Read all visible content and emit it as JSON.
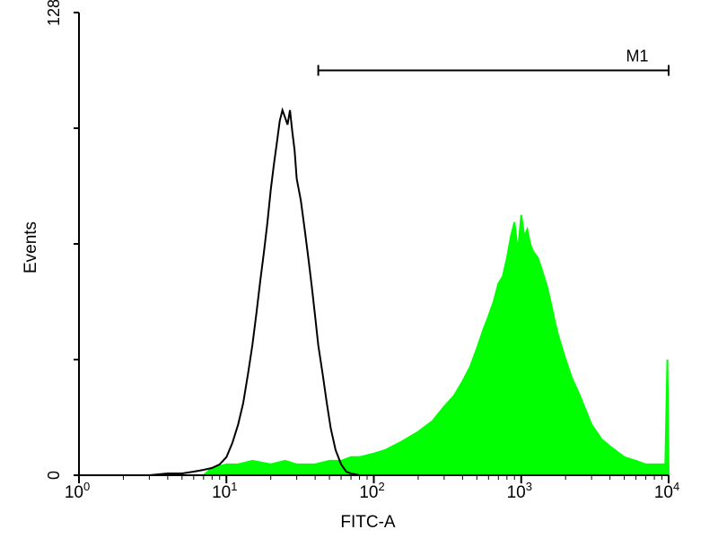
{
  "chart_data": {
    "type": "area",
    "title": "",
    "xlabel": "FITC-A",
    "ylabel": "Events",
    "xscale": "log",
    "xlim": [
      1,
      10000
    ],
    "ylim": [
      0,
      128
    ],
    "x_ticks": [
      {
        "base": "10",
        "exp": "0",
        "value": 1
      },
      {
        "base": "10",
        "exp": "1",
        "value": 10
      },
      {
        "base": "10",
        "exp": "2",
        "value": 100
      },
      {
        "base": "10",
        "exp": "3",
        "value": 1000
      },
      {
        "base": "10",
        "exp": "4",
        "value": 10000
      }
    ],
    "y_ticks": [
      {
        "label": "0",
        "value": 0
      },
      {
        "label": "128",
        "value": 128
      }
    ],
    "grid": false,
    "legend": "none",
    "series": [
      {
        "color": "#000000",
        "style": "outline",
        "x": [
          3,
          4,
          5,
          6,
          7,
          8,
          9,
          10,
          11,
          12,
          13,
          14,
          15,
          16,
          17,
          18,
          19,
          20,
          21,
          22,
          23,
          24,
          25,
          26,
          27,
          28,
          29,
          30,
          32,
          34,
          36,
          38,
          40,
          42,
          45,
          48,
          51,
          55,
          60,
          65,
          70,
          80
        ],
        "y": [
          0,
          0.5,
          0.5,
          1,
          1.5,
          2,
          3,
          5,
          9,
          14,
          20,
          28,
          36,
          45,
          54,
          62,
          70,
          79,
          86,
          92,
          98,
          101,
          99,
          97,
          101,
          95,
          90,
          82,
          76,
          68,
          60,
          52,
          44,
          36,
          28,
          20,
          13,
          7,
          3,
          1,
          0.5,
          0
        ]
      },
      {
        "color": "#00ff00",
        "style": "filled",
        "x": [
          7,
          8,
          10,
          12,
          15,
          20,
          25,
          30,
          40,
          50,
          60,
          70,
          80,
          100,
          120,
          150,
          200,
          250,
          300,
          350,
          400,
          450,
          500,
          550,
          600,
          650,
          700,
          750,
          800,
          850,
          900,
          950,
          1000,
          1050,
          1100,
          1150,
          1200,
          1300,
          1400,
          1500,
          1600,
          1700,
          1800,
          2000,
          2200,
          2500,
          2800,
          3000,
          3500,
          4000,
          5000,
          6000,
          7000,
          8000,
          9000,
          9500,
          9800,
          10000
        ],
        "y": [
          0,
          2,
          3,
          3,
          4,
          3,
          4,
          3,
          3,
          4,
          4,
          5,
          5,
          6,
          7,
          9,
          12,
          15,
          19,
          22,
          26,
          30,
          35,
          40,
          44,
          48,
          53,
          55,
          60,
          66,
          70,
          62,
          72,
          66,
          68,
          64,
          62,
          60,
          56,
          52,
          47,
          42,
          38,
          32,
          27,
          22,
          17,
          14,
          10,
          8,
          5,
          4,
          3,
          3,
          3,
          3,
          32,
          0
        ]
      }
    ],
    "annotations": [
      {
        "label": "M1",
        "x_start": 42,
        "x_end": 10000,
        "y": 112
      }
    ]
  }
}
